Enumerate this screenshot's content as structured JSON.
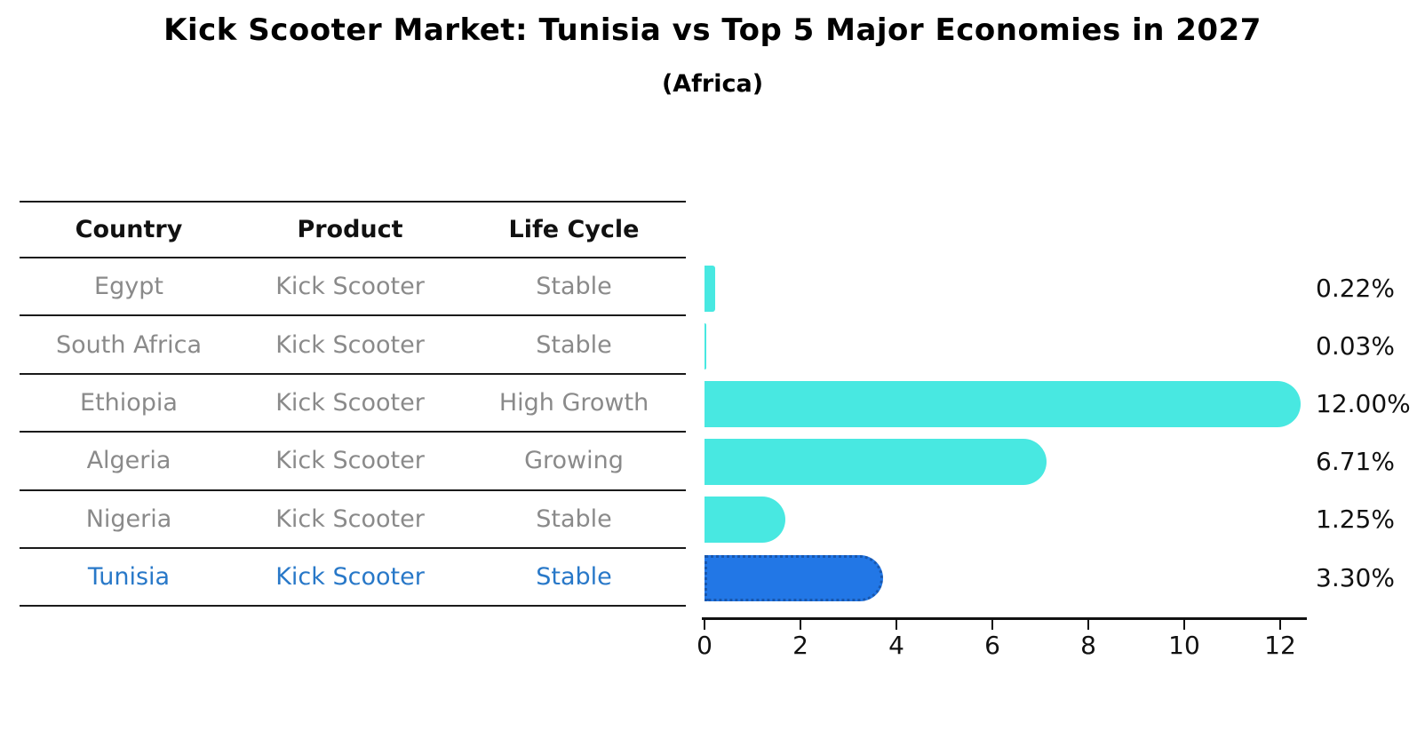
{
  "title": "Kick Scooter Market: Tunisia vs Top 5 Major Economies in 2027",
  "subtitle": "(Africa)",
  "table": {
    "headers": [
      "Country",
      "Product",
      "Life Cycle"
    ],
    "rows": [
      {
        "country": "Egypt",
        "product": "Kick Scooter",
        "life_cycle": "Stable",
        "highlight": false
      },
      {
        "country": "South Africa",
        "product": "Kick Scooter",
        "life_cycle": "Stable",
        "highlight": false
      },
      {
        "country": "Ethiopia",
        "product": "Kick Scooter",
        "life_cycle": "High Growth",
        "highlight": false
      },
      {
        "country": "Algeria",
        "product": "Kick Scooter",
        "life_cycle": "Growing",
        "highlight": false
      },
      {
        "country": "Nigeria",
        "product": "Kick Scooter",
        "life_cycle": "Stable",
        "highlight": false
      },
      {
        "country": "Tunisia",
        "product": "Kick Scooter",
        "life_cycle": "Stable",
        "highlight": true
      }
    ]
  },
  "chart_data": {
    "type": "bar",
    "orientation": "horizontal",
    "title": "Kick Scooter Market: Tunisia vs Top 5 Major Economies in 2027 (Africa)",
    "categories": [
      "Egypt",
      "South Africa",
      "Ethiopia",
      "Algeria",
      "Nigeria",
      "Tunisia"
    ],
    "values": [
      0.22,
      0.03,
      12.0,
      6.71,
      1.25,
      3.3
    ],
    "value_labels": [
      "0.22%",
      "0.03%",
      "12.00%",
      "6.71%",
      "1.25%",
      "3.30%"
    ],
    "x_ticks": [
      0,
      2,
      4,
      6,
      8,
      10,
      12
    ],
    "xlim": [
      0,
      12.6
    ],
    "grid": false,
    "legend": false,
    "bar_color": "#48E8E1",
    "highlight_color": "#2277E6",
    "highlight_border_color": "#1857AE",
    "highlight_index": 5,
    "highlight_category": "Tunisia"
  },
  "colors": {
    "title_text": "#000000",
    "table_text": "#8a8a8a",
    "highlight_text": "#2878C8",
    "axis": "#111111"
  }
}
